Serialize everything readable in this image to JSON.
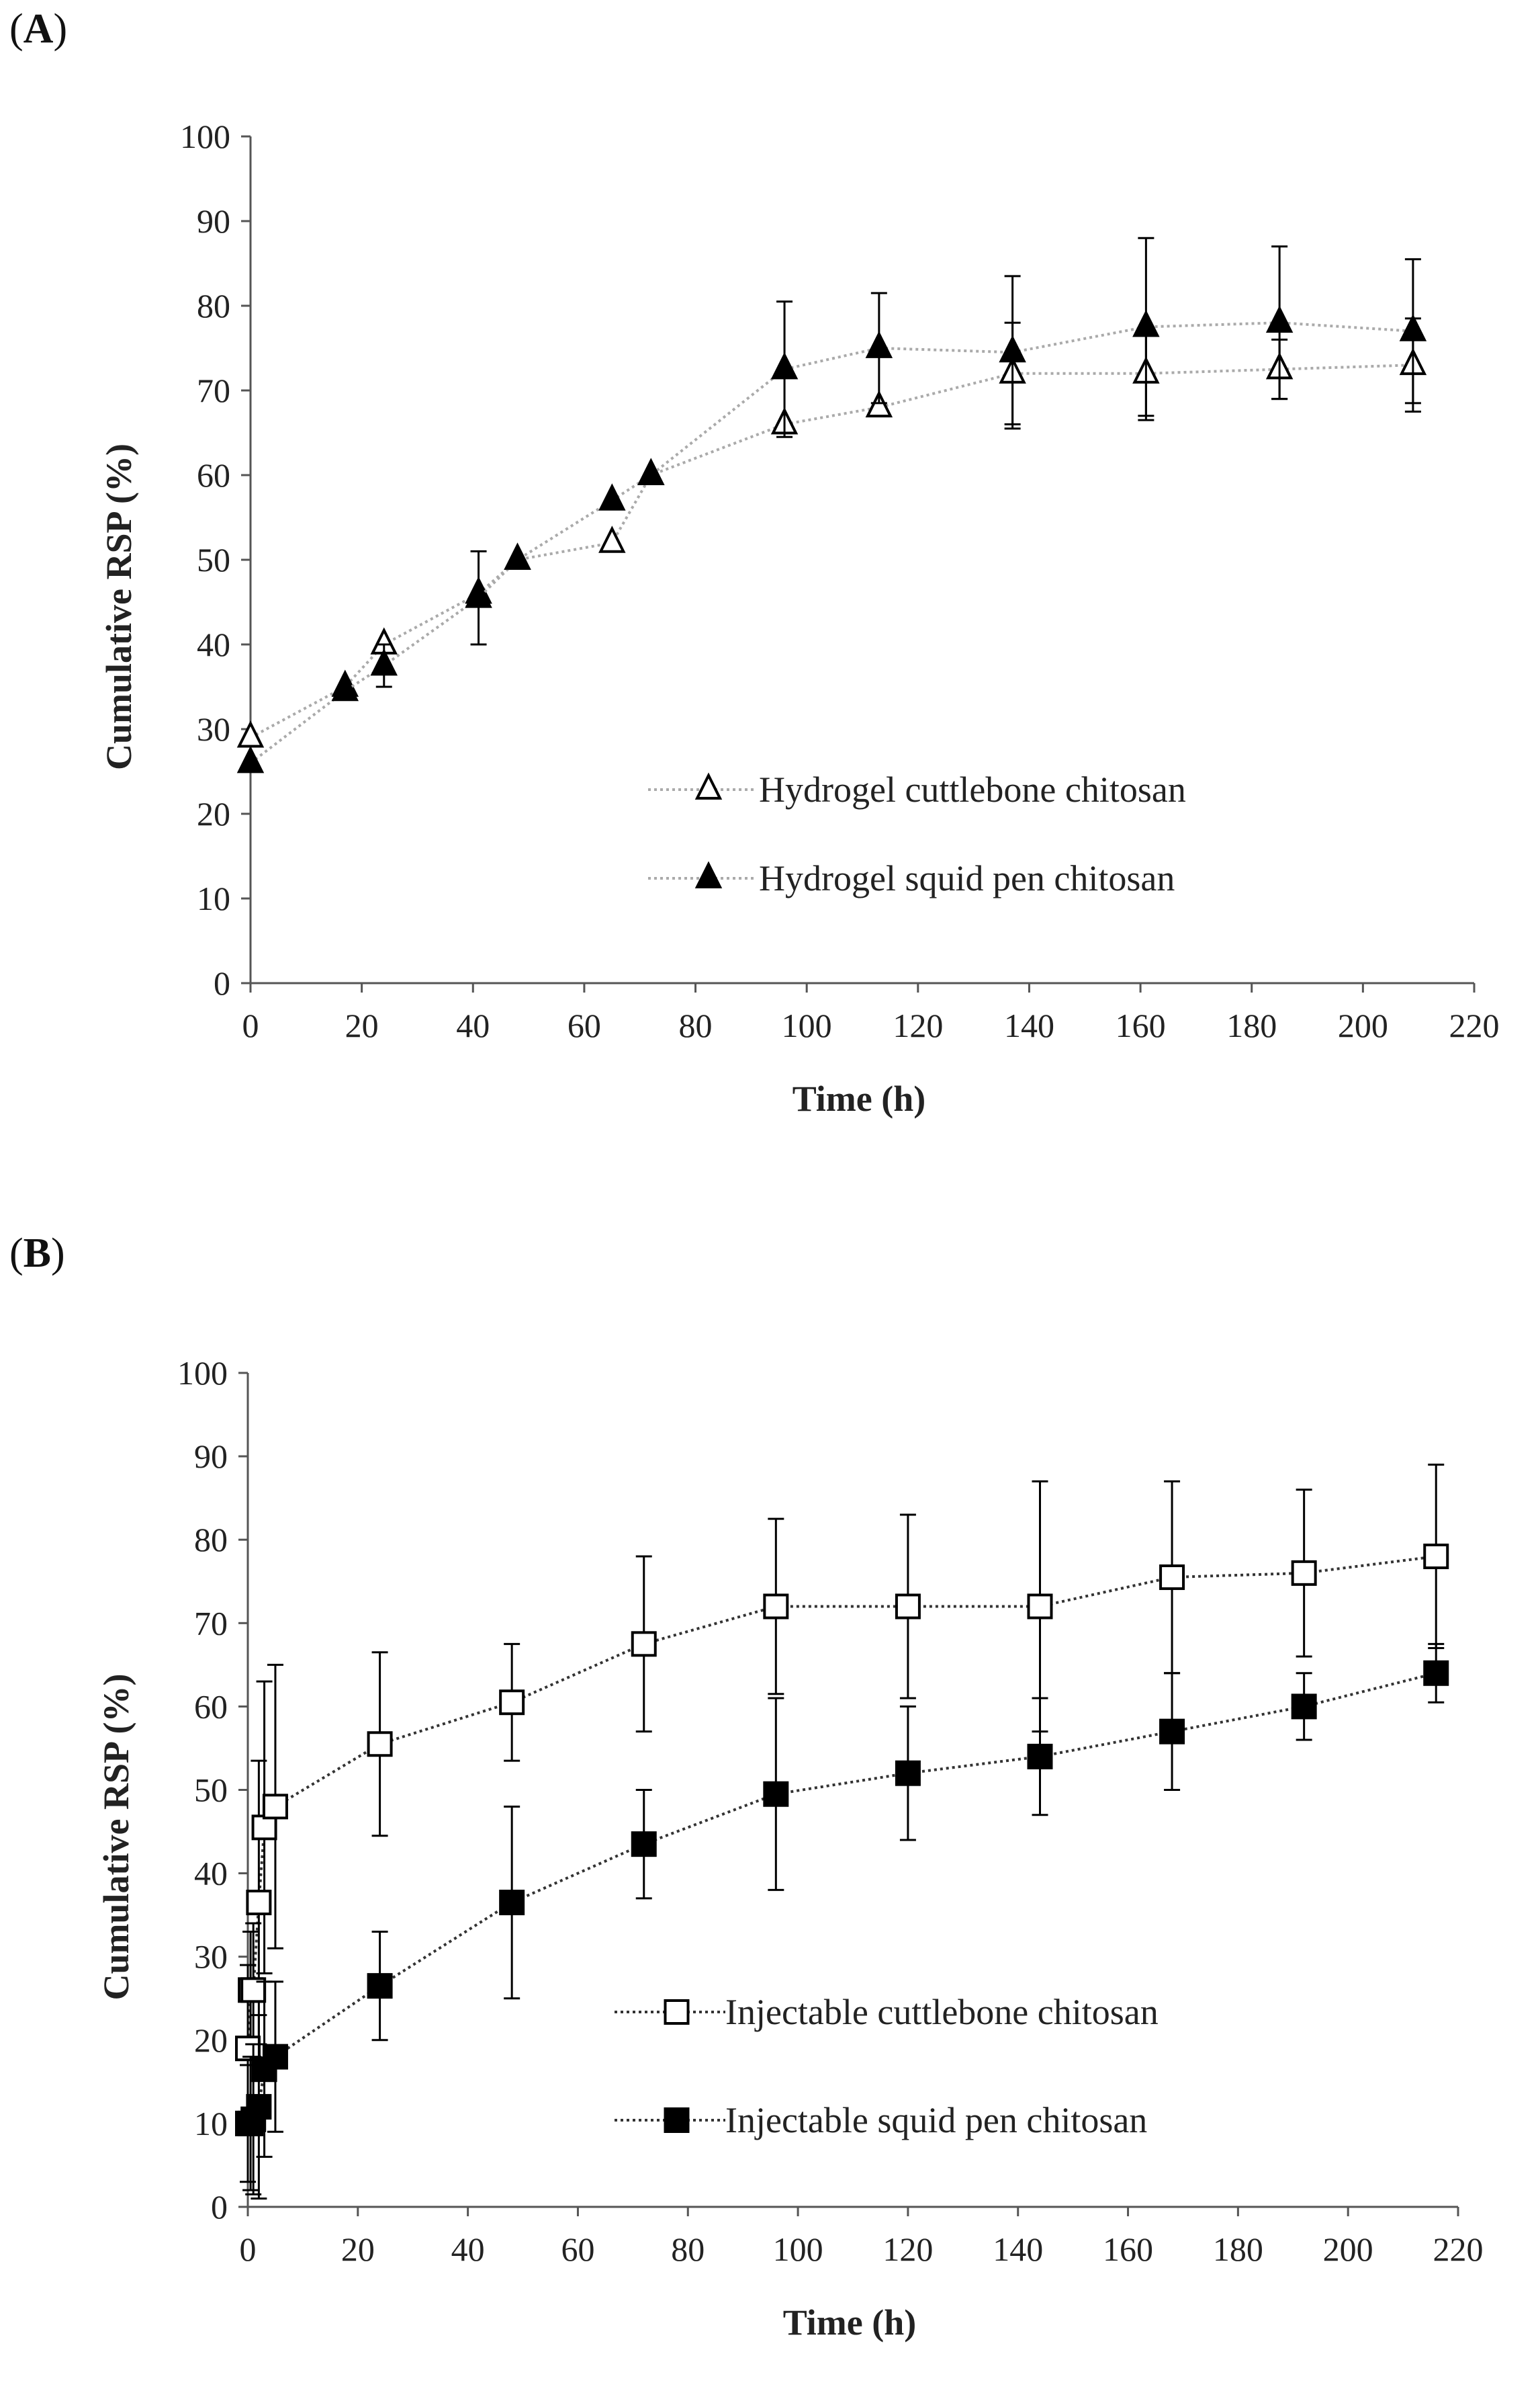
{
  "panels": [
    {
      "label": "A",
      "chart_data": {
        "type": "line",
        "title": "",
        "xlabel": "Time (h)",
        "ylabel": "Cumulative RSP (%)",
        "xlim": [
          0,
          220
        ],
        "ylim": [
          0,
          100
        ],
        "xticks": [
          0,
          20,
          40,
          60,
          80,
          100,
          120,
          140,
          160,
          180,
          200,
          220
        ],
        "yticks": [
          0,
          10,
          20,
          30,
          40,
          50,
          60,
          70,
          80,
          90,
          100
        ],
        "grid": false,
        "legend_position": "center-right",
        "series": [
          {
            "name": "Hydrogel cuttlebone chitosan",
            "marker": "triangle-open",
            "line_style": "dotted",
            "line_color": "#aaaaaa",
            "x": [
              0,
              17,
              24,
              41,
              48,
              65,
              72,
              96,
              113,
              137,
              161,
              185,
              209
            ],
            "y": [
              29,
              35,
              40,
              46,
              50,
              52,
              60,
              66,
              68,
              72,
              72,
              72.5,
              73
            ],
            "err": [
              0,
              0,
              0,
              0,
              0,
              0,
              0,
              0,
              0,
              6,
              5.5,
              3.5,
              5.5
            ]
          },
          {
            "name": "Hydrogel squid pen chitosan",
            "marker": "triangle-filled",
            "line_style": "dotted",
            "line_color": "#aaaaaa",
            "x": [
              0,
              17,
              24,
              41,
              48,
              65,
              72,
              96,
              113,
              137,
              161,
              185,
              209
            ],
            "y": [
              26,
              34.5,
              37.5,
              45.5,
              50,
              57,
              60,
              72.5,
              75,
              74.5,
              77.5,
              78,
              77
            ],
            "err": [
              0,
              0,
              2.5,
              5.5,
              0,
              0,
              0,
              8,
              6.5,
              9,
              10.5,
              9,
              8.5
            ]
          }
        ]
      }
    },
    {
      "label": "B",
      "chart_data": {
        "type": "line",
        "title": "",
        "xlabel": "Time (h)",
        "ylabel": "Cumulative RSP (%)",
        "xlim": [
          0,
          220
        ],
        "ylim": [
          0,
          100
        ],
        "xticks": [
          0,
          20,
          40,
          60,
          80,
          100,
          120,
          140,
          160,
          180,
          200,
          220
        ],
        "yticks": [
          0,
          10,
          20,
          30,
          40,
          50,
          60,
          70,
          80,
          90,
          100
        ],
        "grid": false,
        "legend_position": "center-right",
        "series": [
          {
            "name": "Injectable cuttlebone chitosan",
            "marker": "square-open",
            "line_style": "dotted",
            "line_color": "#333333",
            "x": [
              0,
              0.5,
              1,
              2,
              3,
              5,
              24,
              48,
              72,
              96,
              120,
              144,
              168,
              192,
              216
            ],
            "y": [
              19,
              26,
              26,
              36.5,
              45.5,
              48,
              55.5,
              60.5,
              67.5,
              72,
              72,
              72,
              75.5,
              76,
              78
            ],
            "err": [
              10,
              7,
              8,
              17,
              17.5,
              17,
              11,
              7,
              10.5,
              10.5,
              11,
              15,
              11.5,
              10,
              11
            ]
          },
          {
            "name": "Injectable squid pen chitosan",
            "marker": "square-filled",
            "line_style": "dotted",
            "line_color": "#333333",
            "x": [
              0,
              0.5,
              1,
              2,
              3,
              5,
              24,
              48,
              72,
              96,
              120,
              144,
              168,
              192,
              216
            ],
            "y": [
              10,
              10,
              10.5,
              12,
              16.5,
              18,
              26.5,
              36.5,
              43.5,
              49.5,
              52,
              54,
              57,
              60,
              64
            ],
            "err": [
              7,
              8,
              9,
              11,
              10.5,
              9,
              6.5,
              11.5,
              6.5,
              11.5,
              8,
              7,
              7,
              4,
              3.5
            ]
          }
        ]
      }
    }
  ]
}
